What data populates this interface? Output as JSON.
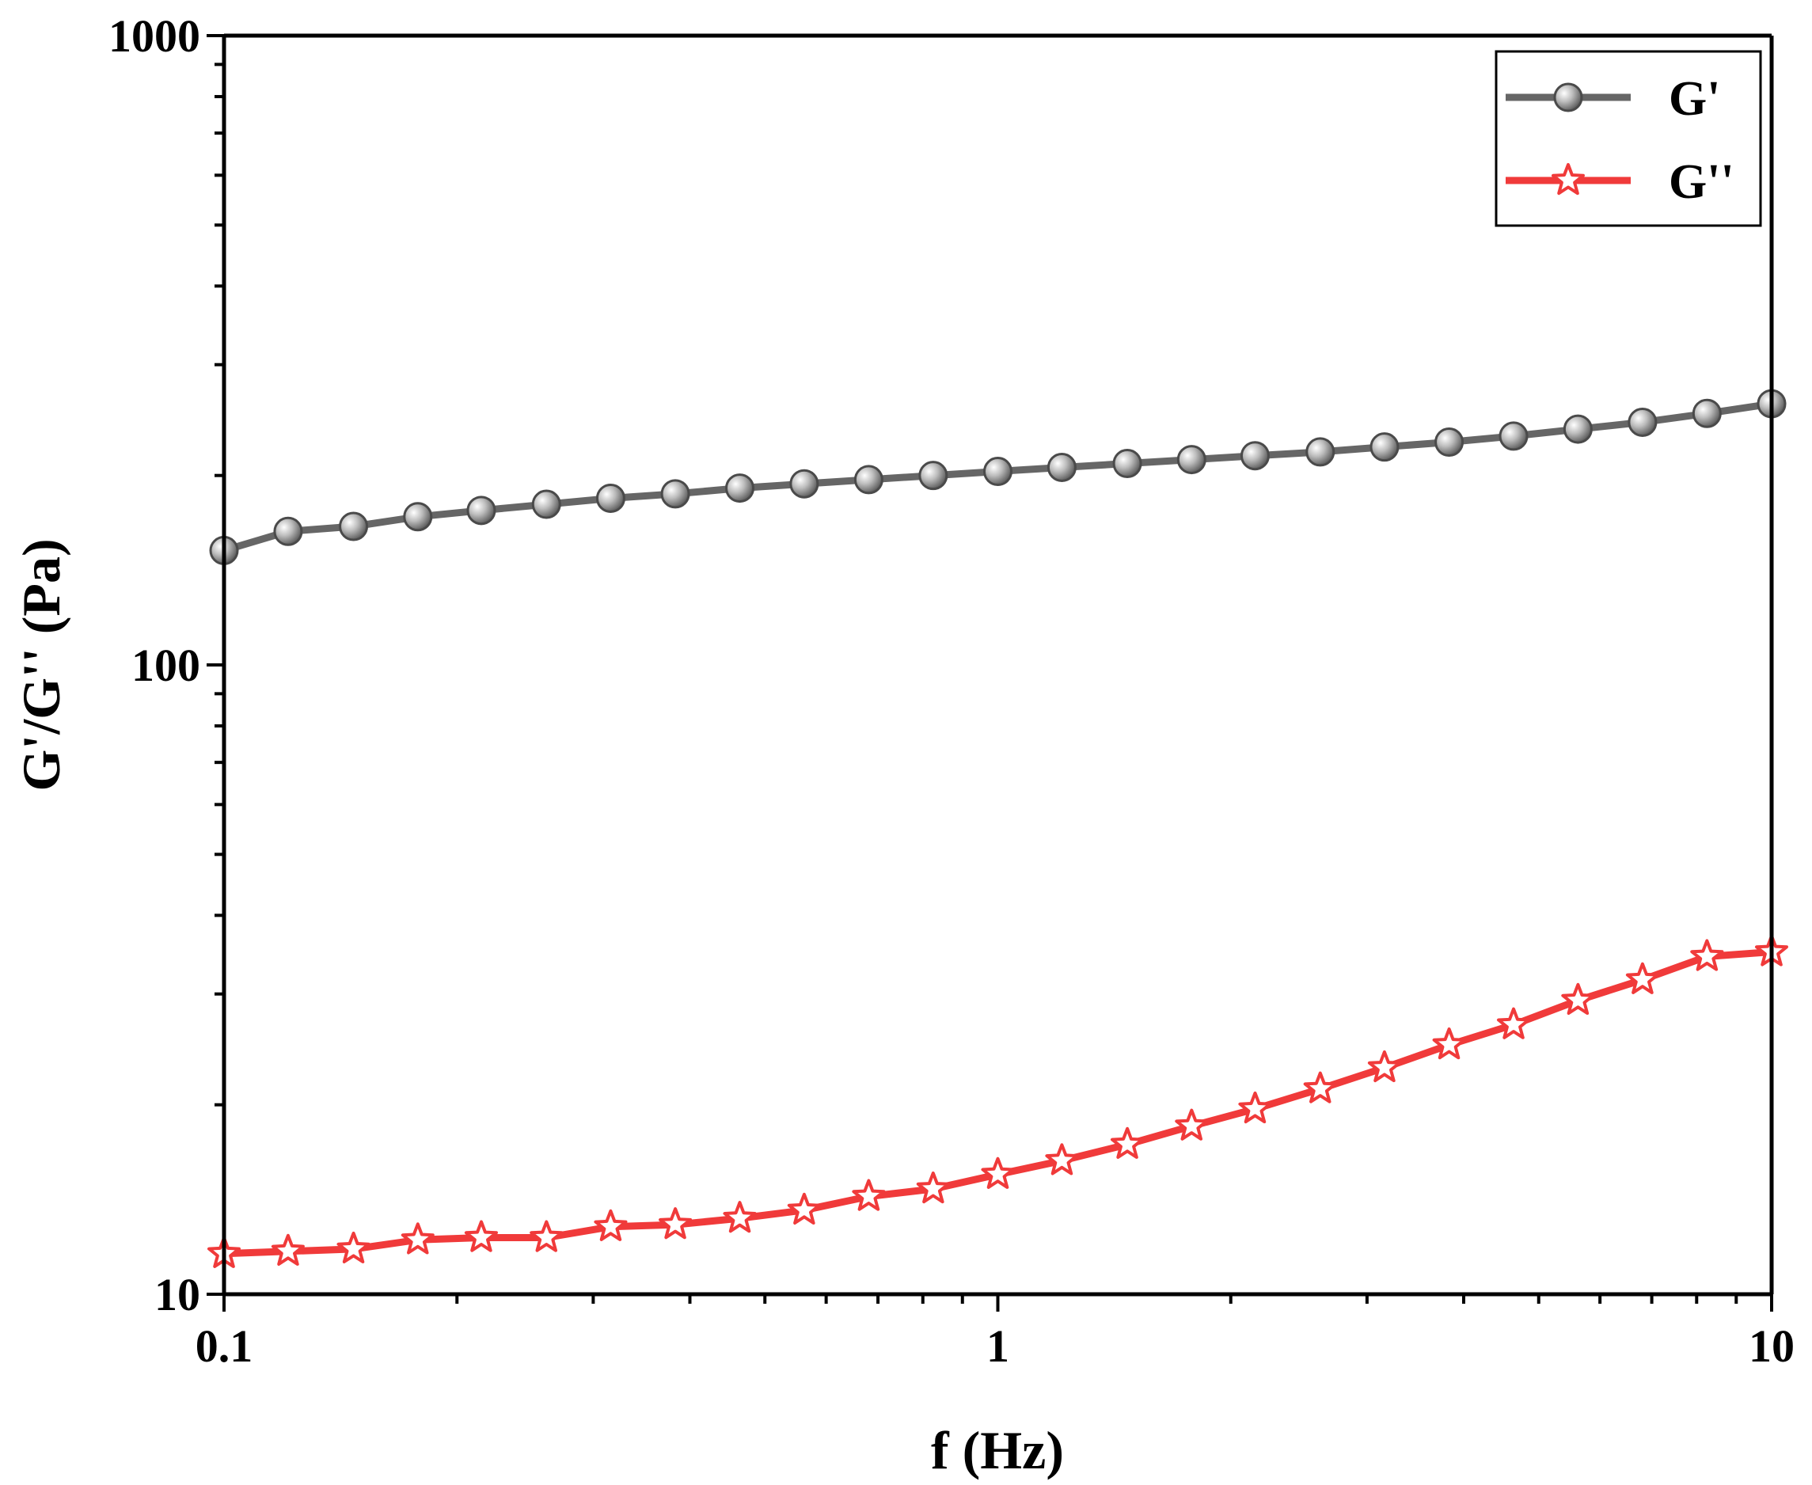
{
  "chart_data": {
    "type": "line",
    "xlabel": "f (Hz)",
    "ylabel": "G'/G'' (Pa)",
    "xscale": "log",
    "yscale": "log",
    "xlim": [
      0.1,
      10
    ],
    "ylim": [
      10,
      1000
    ],
    "x_ticks": [
      {
        "value": 0.1,
        "label": "0.1"
      },
      {
        "value": 1,
        "label": "1"
      },
      {
        "value": 10,
        "label": "10"
      }
    ],
    "y_ticks": [
      {
        "value": 10,
        "label": "10"
      },
      {
        "value": 100,
        "label": "100"
      },
      {
        "value": 1000,
        "label": "1000"
      }
    ],
    "grid": false,
    "legend_position": "top-right",
    "x": [
      0.1,
      0.121,
      0.147,
      0.178,
      0.215,
      0.261,
      0.316,
      0.383,
      0.464,
      0.562,
      0.681,
      0.825,
      1.0,
      1.21,
      1.47,
      1.78,
      2.15,
      2.61,
      3.16,
      3.83,
      4.64,
      5.62,
      6.81,
      8.25,
      10.0
    ],
    "series": [
      {
        "name": "G'",
        "color": "#666666",
        "marker": "sphere",
        "values": [
          152,
          163,
          166,
          172,
          176,
          180,
          184,
          187,
          191,
          194,
          197,
          200,
          203,
          206,
          209,
          212,
          215,
          218,
          222,
          226,
          231,
          237,
          243,
          251,
          260
        ]
      },
      {
        "name": "G''",
        "color": "#f03a3a",
        "marker": "star",
        "values": [
          11.6,
          11.7,
          11.8,
          12.2,
          12.3,
          12.3,
          12.8,
          12.9,
          13.2,
          13.6,
          14.3,
          14.7,
          15.5,
          16.3,
          17.3,
          18.5,
          19.7,
          21.2,
          22.9,
          24.9,
          26.8,
          29.3,
          31.6,
          34.4,
          35.0
        ]
      }
    ]
  }
}
